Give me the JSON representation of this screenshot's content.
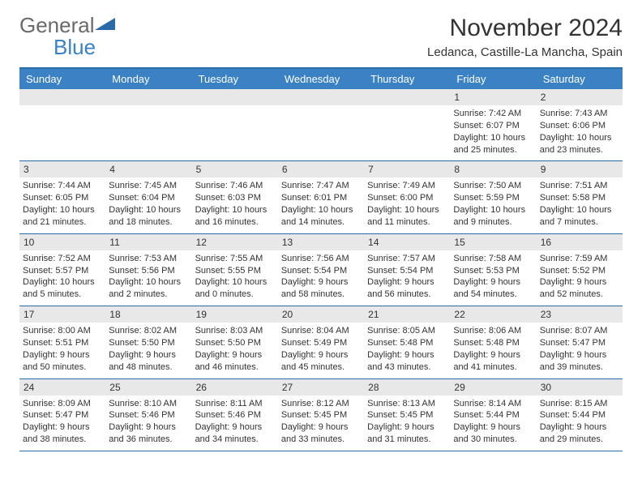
{
  "brand": {
    "part1": "General",
    "part2": "Blue"
  },
  "title": "November 2024",
  "subtitle": "Ledanca, Castille-La Mancha, Spain",
  "colors": {
    "header_bg": "#3b82c4",
    "border": "#2b6aa8",
    "daynum_bg": "#e8e8e8",
    "text": "#333333",
    "logo_gray": "#6a6a6a"
  },
  "dayNames": [
    "Sunday",
    "Monday",
    "Tuesday",
    "Wednesday",
    "Thursday",
    "Friday",
    "Saturday"
  ],
  "weeks": [
    [
      {
        "n": "",
        "sr": "",
        "ss": "",
        "dl1": "",
        "dl2": ""
      },
      {
        "n": "",
        "sr": "",
        "ss": "",
        "dl1": "",
        "dl2": ""
      },
      {
        "n": "",
        "sr": "",
        "ss": "",
        "dl1": "",
        "dl2": ""
      },
      {
        "n": "",
        "sr": "",
        "ss": "",
        "dl1": "",
        "dl2": ""
      },
      {
        "n": "",
        "sr": "",
        "ss": "",
        "dl1": "",
        "dl2": ""
      },
      {
        "n": "1",
        "sr": "Sunrise: 7:42 AM",
        "ss": "Sunset: 6:07 PM",
        "dl1": "Daylight: 10 hours",
        "dl2": "and 25 minutes."
      },
      {
        "n": "2",
        "sr": "Sunrise: 7:43 AM",
        "ss": "Sunset: 6:06 PM",
        "dl1": "Daylight: 10 hours",
        "dl2": "and 23 minutes."
      }
    ],
    [
      {
        "n": "3",
        "sr": "Sunrise: 7:44 AM",
        "ss": "Sunset: 6:05 PM",
        "dl1": "Daylight: 10 hours",
        "dl2": "and 21 minutes."
      },
      {
        "n": "4",
        "sr": "Sunrise: 7:45 AM",
        "ss": "Sunset: 6:04 PM",
        "dl1": "Daylight: 10 hours",
        "dl2": "and 18 minutes."
      },
      {
        "n": "5",
        "sr": "Sunrise: 7:46 AM",
        "ss": "Sunset: 6:03 PM",
        "dl1": "Daylight: 10 hours",
        "dl2": "and 16 minutes."
      },
      {
        "n": "6",
        "sr": "Sunrise: 7:47 AM",
        "ss": "Sunset: 6:01 PM",
        "dl1": "Daylight: 10 hours",
        "dl2": "and 14 minutes."
      },
      {
        "n": "7",
        "sr": "Sunrise: 7:49 AM",
        "ss": "Sunset: 6:00 PM",
        "dl1": "Daylight: 10 hours",
        "dl2": "and 11 minutes."
      },
      {
        "n": "8",
        "sr": "Sunrise: 7:50 AM",
        "ss": "Sunset: 5:59 PM",
        "dl1": "Daylight: 10 hours",
        "dl2": "and 9 minutes."
      },
      {
        "n": "9",
        "sr": "Sunrise: 7:51 AM",
        "ss": "Sunset: 5:58 PM",
        "dl1": "Daylight: 10 hours",
        "dl2": "and 7 minutes."
      }
    ],
    [
      {
        "n": "10",
        "sr": "Sunrise: 7:52 AM",
        "ss": "Sunset: 5:57 PM",
        "dl1": "Daylight: 10 hours",
        "dl2": "and 5 minutes."
      },
      {
        "n": "11",
        "sr": "Sunrise: 7:53 AM",
        "ss": "Sunset: 5:56 PM",
        "dl1": "Daylight: 10 hours",
        "dl2": "and 2 minutes."
      },
      {
        "n": "12",
        "sr": "Sunrise: 7:55 AM",
        "ss": "Sunset: 5:55 PM",
        "dl1": "Daylight: 10 hours",
        "dl2": "and 0 minutes."
      },
      {
        "n": "13",
        "sr": "Sunrise: 7:56 AM",
        "ss": "Sunset: 5:54 PM",
        "dl1": "Daylight: 9 hours",
        "dl2": "and 58 minutes."
      },
      {
        "n": "14",
        "sr": "Sunrise: 7:57 AM",
        "ss": "Sunset: 5:54 PM",
        "dl1": "Daylight: 9 hours",
        "dl2": "and 56 minutes."
      },
      {
        "n": "15",
        "sr": "Sunrise: 7:58 AM",
        "ss": "Sunset: 5:53 PM",
        "dl1": "Daylight: 9 hours",
        "dl2": "and 54 minutes."
      },
      {
        "n": "16",
        "sr": "Sunrise: 7:59 AM",
        "ss": "Sunset: 5:52 PM",
        "dl1": "Daylight: 9 hours",
        "dl2": "and 52 minutes."
      }
    ],
    [
      {
        "n": "17",
        "sr": "Sunrise: 8:00 AM",
        "ss": "Sunset: 5:51 PM",
        "dl1": "Daylight: 9 hours",
        "dl2": "and 50 minutes."
      },
      {
        "n": "18",
        "sr": "Sunrise: 8:02 AM",
        "ss": "Sunset: 5:50 PM",
        "dl1": "Daylight: 9 hours",
        "dl2": "and 48 minutes."
      },
      {
        "n": "19",
        "sr": "Sunrise: 8:03 AM",
        "ss": "Sunset: 5:50 PM",
        "dl1": "Daylight: 9 hours",
        "dl2": "and 46 minutes."
      },
      {
        "n": "20",
        "sr": "Sunrise: 8:04 AM",
        "ss": "Sunset: 5:49 PM",
        "dl1": "Daylight: 9 hours",
        "dl2": "and 45 minutes."
      },
      {
        "n": "21",
        "sr": "Sunrise: 8:05 AM",
        "ss": "Sunset: 5:48 PM",
        "dl1": "Daylight: 9 hours",
        "dl2": "and 43 minutes."
      },
      {
        "n": "22",
        "sr": "Sunrise: 8:06 AM",
        "ss": "Sunset: 5:48 PM",
        "dl1": "Daylight: 9 hours",
        "dl2": "and 41 minutes."
      },
      {
        "n": "23",
        "sr": "Sunrise: 8:07 AM",
        "ss": "Sunset: 5:47 PM",
        "dl1": "Daylight: 9 hours",
        "dl2": "and 39 minutes."
      }
    ],
    [
      {
        "n": "24",
        "sr": "Sunrise: 8:09 AM",
        "ss": "Sunset: 5:47 PM",
        "dl1": "Daylight: 9 hours",
        "dl2": "and 38 minutes."
      },
      {
        "n": "25",
        "sr": "Sunrise: 8:10 AM",
        "ss": "Sunset: 5:46 PM",
        "dl1": "Daylight: 9 hours",
        "dl2": "and 36 minutes."
      },
      {
        "n": "26",
        "sr": "Sunrise: 8:11 AM",
        "ss": "Sunset: 5:46 PM",
        "dl1": "Daylight: 9 hours",
        "dl2": "and 34 minutes."
      },
      {
        "n": "27",
        "sr": "Sunrise: 8:12 AM",
        "ss": "Sunset: 5:45 PM",
        "dl1": "Daylight: 9 hours",
        "dl2": "and 33 minutes."
      },
      {
        "n": "28",
        "sr": "Sunrise: 8:13 AM",
        "ss": "Sunset: 5:45 PM",
        "dl1": "Daylight: 9 hours",
        "dl2": "and 31 minutes."
      },
      {
        "n": "29",
        "sr": "Sunrise: 8:14 AM",
        "ss": "Sunset: 5:44 PM",
        "dl1": "Daylight: 9 hours",
        "dl2": "and 30 minutes."
      },
      {
        "n": "30",
        "sr": "Sunrise: 8:15 AM",
        "ss": "Sunset: 5:44 PM",
        "dl1": "Daylight: 9 hours",
        "dl2": "and 29 minutes."
      }
    ]
  ]
}
